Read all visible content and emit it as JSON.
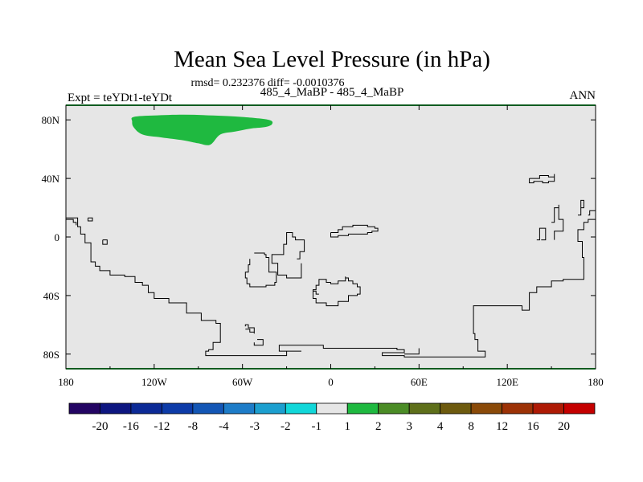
{
  "chart_data": {
    "type": "contour-map",
    "title": "Mean Sea Level Pressure (in hPa)",
    "stats_text": "rmsd= 0.232376 diff= -0.0010376",
    "center_label": "485_4_MaBP - 485_4_MaBP",
    "left_label": "Expt = teYDt1-teYDt",
    "right_label": "ANN",
    "xlim": [
      -180,
      180
    ],
    "ylim": [
      -90,
      90
    ],
    "x_ticks": [
      {
        "value": -180,
        "label": "180"
      },
      {
        "value": -120,
        "label": "120W"
      },
      {
        "value": -60,
        "label": "60W"
      },
      {
        "value": 0,
        "label": "0"
      },
      {
        "value": 60,
        "label": "60E"
      },
      {
        "value": 120,
        "label": "120E"
      },
      {
        "value": 180,
        "label": "180"
      }
    ],
    "y_ticks": [
      {
        "value": 80,
        "label": "80N"
      },
      {
        "value": 40,
        "label": "40N"
      },
      {
        "value": 0,
        "label": "0"
      },
      {
        "value": -40,
        "label": "40S"
      },
      {
        "value": -80,
        "label": "80S"
      }
    ],
    "background_value_range": [
      -1,
      1
    ],
    "anomaly_regions": [
      {
        "name": "Arctic high anomaly",
        "range": [
          1,
          2
        ],
        "color": "#1fb940",
        "outline": [
          [
            -134,
            82
          ],
          [
            -120,
            83
          ],
          [
            -100,
            83.5
          ],
          [
            -80,
            83
          ],
          [
            -60,
            82
          ],
          [
            -42,
            80
          ],
          [
            -40,
            77
          ],
          [
            -45,
            75
          ],
          [
            -55,
            74
          ],
          [
            -65,
            72
          ],
          [
            -75,
            70
          ],
          [
            -82,
            63
          ],
          [
            -90,
            64
          ],
          [
            -100,
            66
          ],
          [
            -115,
            68
          ],
          [
            -128,
            70
          ],
          [
            -134,
            75
          ],
          [
            -135,
            79
          ]
        ]
      }
    ],
    "coastlines": [
      [
        [
          -180,
          13
        ],
        [
          -175,
          13
        ],
        [
          -172,
          7
        ],
        [
          -170,
          2
        ],
        [
          -167,
          -4
        ],
        [
          -163,
          -10
        ],
        [
          -163,
          -17
        ],
        [
          -160,
          -20
        ],
        [
          -157,
          -23
        ],
        [
          -150,
          -26
        ],
        [
          -140,
          -27
        ],
        [
          -133,
          -31
        ],
        [
          -128,
          -33
        ],
        [
          -124,
          -38
        ],
        [
          -120,
          -42
        ],
        [
          -110,
          -45
        ],
        [
          -98,
          -52
        ],
        [
          -88,
          -57
        ],
        [
          -78,
          -59
        ],
        [
          -75,
          -65
        ],
        [
          -75,
          -72
        ],
        [
          -80,
          -73
        ],
        [
          -80,
          -77
        ],
        [
          -83,
          -78
        ],
        [
          -85,
          -81
        ],
        [
          -80,
          -81
        ],
        [
          -45,
          -81
        ],
        [
          -30,
          -80
        ],
        [
          -30,
          -78
        ],
        [
          -20,
          -78
        ],
        [
          -35,
          -76
        ],
        [
          -35,
          -74
        ],
        [
          -5,
          -74
        ],
        [
          -5,
          -76
        ],
        [
          45,
          -77
        ],
        [
          50,
          -79
        ],
        [
          40,
          -79
        ],
        [
          35,
          -81
        ],
        [
          50,
          -82
        ],
        [
          100,
          -82
        ],
        [
          105,
          -80
        ],
        [
          105,
          -78
        ],
        [
          100,
          -76
        ],
        [
          100,
          -70
        ],
        [
          98,
          -66
        ],
        [
          97,
          -56
        ],
        [
          97,
          -47
        ],
        [
          108,
          -47
        ],
        [
          130,
          -50
        ],
        [
          135,
          -46
        ],
        [
          135,
          -38
        ],
        [
          140,
          -34
        ],
        [
          150,
          -30
        ],
        [
          158,
          -29
        ],
        [
          172,
          -25
        ],
        [
          172,
          -14
        ],
        [
          171,
          -3
        ],
        [
          168,
          5
        ],
        [
          172,
          5
        ],
        [
          172,
          10
        ],
        [
          175,
          12
        ],
        [
          180,
          12
        ]
      ],
      [
        [
          -23,
          -15
        ],
        [
          -21,
          -10
        ],
        [
          -18,
          -5
        ],
        [
          -18,
          -2
        ],
        [
          -24,
          0
        ],
        [
          -26,
          3
        ],
        [
          -30,
          2
        ],
        [
          -30,
          -5
        ],
        [
          -32,
          -12
        ],
        [
          -36,
          -12
        ],
        [
          -40,
          -14
        ],
        [
          -40,
          -18
        ],
        [
          -36,
          -20
        ],
        [
          -36,
          -26
        ],
        [
          -30,
          -28
        ],
        [
          -24,
          -28
        ],
        [
          -20,
          -26
        ],
        [
          -20,
          -18
        ]
      ],
      [
        [
          -52,
          -11
        ],
        [
          -45,
          -12
        ],
        [
          -44,
          -14
        ],
        [
          -42,
          -18
        ],
        [
          -42,
          -24
        ],
        [
          -37,
          -31
        ],
        [
          -38,
          -33
        ],
        [
          -44,
          -34
        ],
        [
          -55,
          -32
        ],
        [
          -57,
          -28
        ],
        [
          -58,
          -24
        ],
        [
          -56,
          -19
        ],
        [
          -55,
          -15
        ]
      ],
      [
        [
          -58,
          -63
        ],
        [
          -55,
          -65
        ],
        [
          -52,
          -66
        ],
        [
          -52,
          -62
        ],
        [
          -56,
          -60
        ],
        [
          -58,
          -61
        ]
      ],
      [
        [
          -50,
          -70
        ],
        [
          -48,
          -70
        ],
        [
          -46,
          -71
        ],
        [
          -46,
          -74
        ],
        [
          -50,
          -74
        ],
        [
          -52,
          -72
        ]
      ],
      [
        [
          -180,
          12
        ],
        [
          -178,
          12
        ],
        [
          -175,
          10
        ],
        [
          -173,
          8
        ]
      ],
      [
        [
          -165,
          13
        ],
        [
          -162,
          13
        ],
        [
          -162,
          11
        ],
        [
          -165,
          11
        ],
        [
          -165,
          13
        ]
      ],
      [
        [
          -155,
          -2
        ],
        [
          -152,
          -2
        ],
        [
          -152,
          -5
        ],
        [
          -155,
          -5
        ],
        [
          -155,
          -2
        ]
      ],
      [
        [
          0,
          3
        ],
        [
          5,
          5
        ],
        [
          8,
          7
        ],
        [
          12,
          7
        ],
        [
          15,
          8
        ],
        [
          20,
          8
        ],
        [
          25,
          7
        ],
        [
          30,
          6
        ],
        [
          32,
          4
        ],
        [
          28,
          3
        ],
        [
          25,
          2
        ],
        [
          18,
          2
        ],
        [
          12,
          1
        ],
        [
          5,
          0
        ],
        [
          0,
          0
        ],
        [
          0,
          3
        ]
      ],
      [
        [
          -12,
          -38
        ],
        [
          -12,
          -42
        ],
        [
          -10,
          -45
        ],
        [
          -3,
          -47
        ],
        [
          2,
          -47
        ],
        [
          5,
          -44
        ],
        [
          10,
          -44
        ],
        [
          12,
          -40
        ],
        [
          18,
          -39
        ],
        [
          20,
          -34
        ],
        [
          18,
          -32
        ],
        [
          15,
          -30
        ],
        [
          12,
          -28
        ],
        [
          10,
          -27
        ],
        [
          10,
          -30
        ],
        [
          5,
          -32
        ],
        [
          0,
          -31
        ],
        [
          -3,
          -29
        ],
        [
          -8,
          -33
        ],
        [
          -10,
          -36
        ],
        [
          -12,
          -38
        ]
      ],
      [
        [
          -8,
          -39
        ],
        [
          -10,
          -37
        ],
        [
          -12,
          -38
        ]
      ],
      [
        [
          60,
          -76
        ],
        [
          60,
          -80
        ],
        [
          50,
          -80
        ]
      ],
      [
        [
          135,
          40
        ],
        [
          142,
          42
        ],
        [
          148,
          41
        ],
        [
          152,
          43
        ],
        [
          152,
          38
        ],
        [
          148,
          37
        ],
        [
          144,
          38
        ],
        [
          138,
          37
        ],
        [
          135,
          40
        ]
      ],
      [
        [
          140,
          -2
        ],
        [
          142,
          -2
        ],
        [
          142,
          6
        ],
        [
          146,
          6
        ],
        [
          146,
          -2
        ],
        [
          143,
          -2
        ]
      ],
      [
        [
          150,
          10
        ],
        [
          152,
          10
        ],
        [
          152,
          20
        ],
        [
          155,
          22
        ],
        [
          155,
          12
        ],
        [
          158,
          12
        ],
        [
          158,
          4
        ],
        [
          152,
          4
        ],
        [
          152,
          -2
        ]
      ],
      [
        [
          168,
          15
        ],
        [
          170,
          15
        ],
        [
          170,
          20
        ],
        [
          172,
          20
        ],
        [
          172,
          25
        ],
        [
          170,
          25
        ],
        [
          170,
          20
        ]
      ],
      [
        [
          175,
          15
        ],
        [
          176,
          18
        ],
        [
          180,
          18
        ]
      ]
    ],
    "colorbar": {
      "labels": [
        "-20",
        "-16",
        "-12",
        "-8",
        "-4",
        "-3",
        "-2",
        "-1",
        "1",
        "2",
        "3",
        "4",
        "8",
        "12",
        "16",
        "20"
      ],
      "colors": [
        "#230563",
        "#0d1680",
        "#0c2a96",
        "#0d3ba8",
        "#1356b5",
        "#1d7cc8",
        "#1c9fcf",
        "#12d7d9",
        "#e6e6e6",
        "#1fb940",
        "#4b8c26",
        "#5e6f1a",
        "#6d5a0e",
        "#8a4a09",
        "#9c3206",
        "#ae1a05",
        "#c40000"
      ]
    }
  }
}
